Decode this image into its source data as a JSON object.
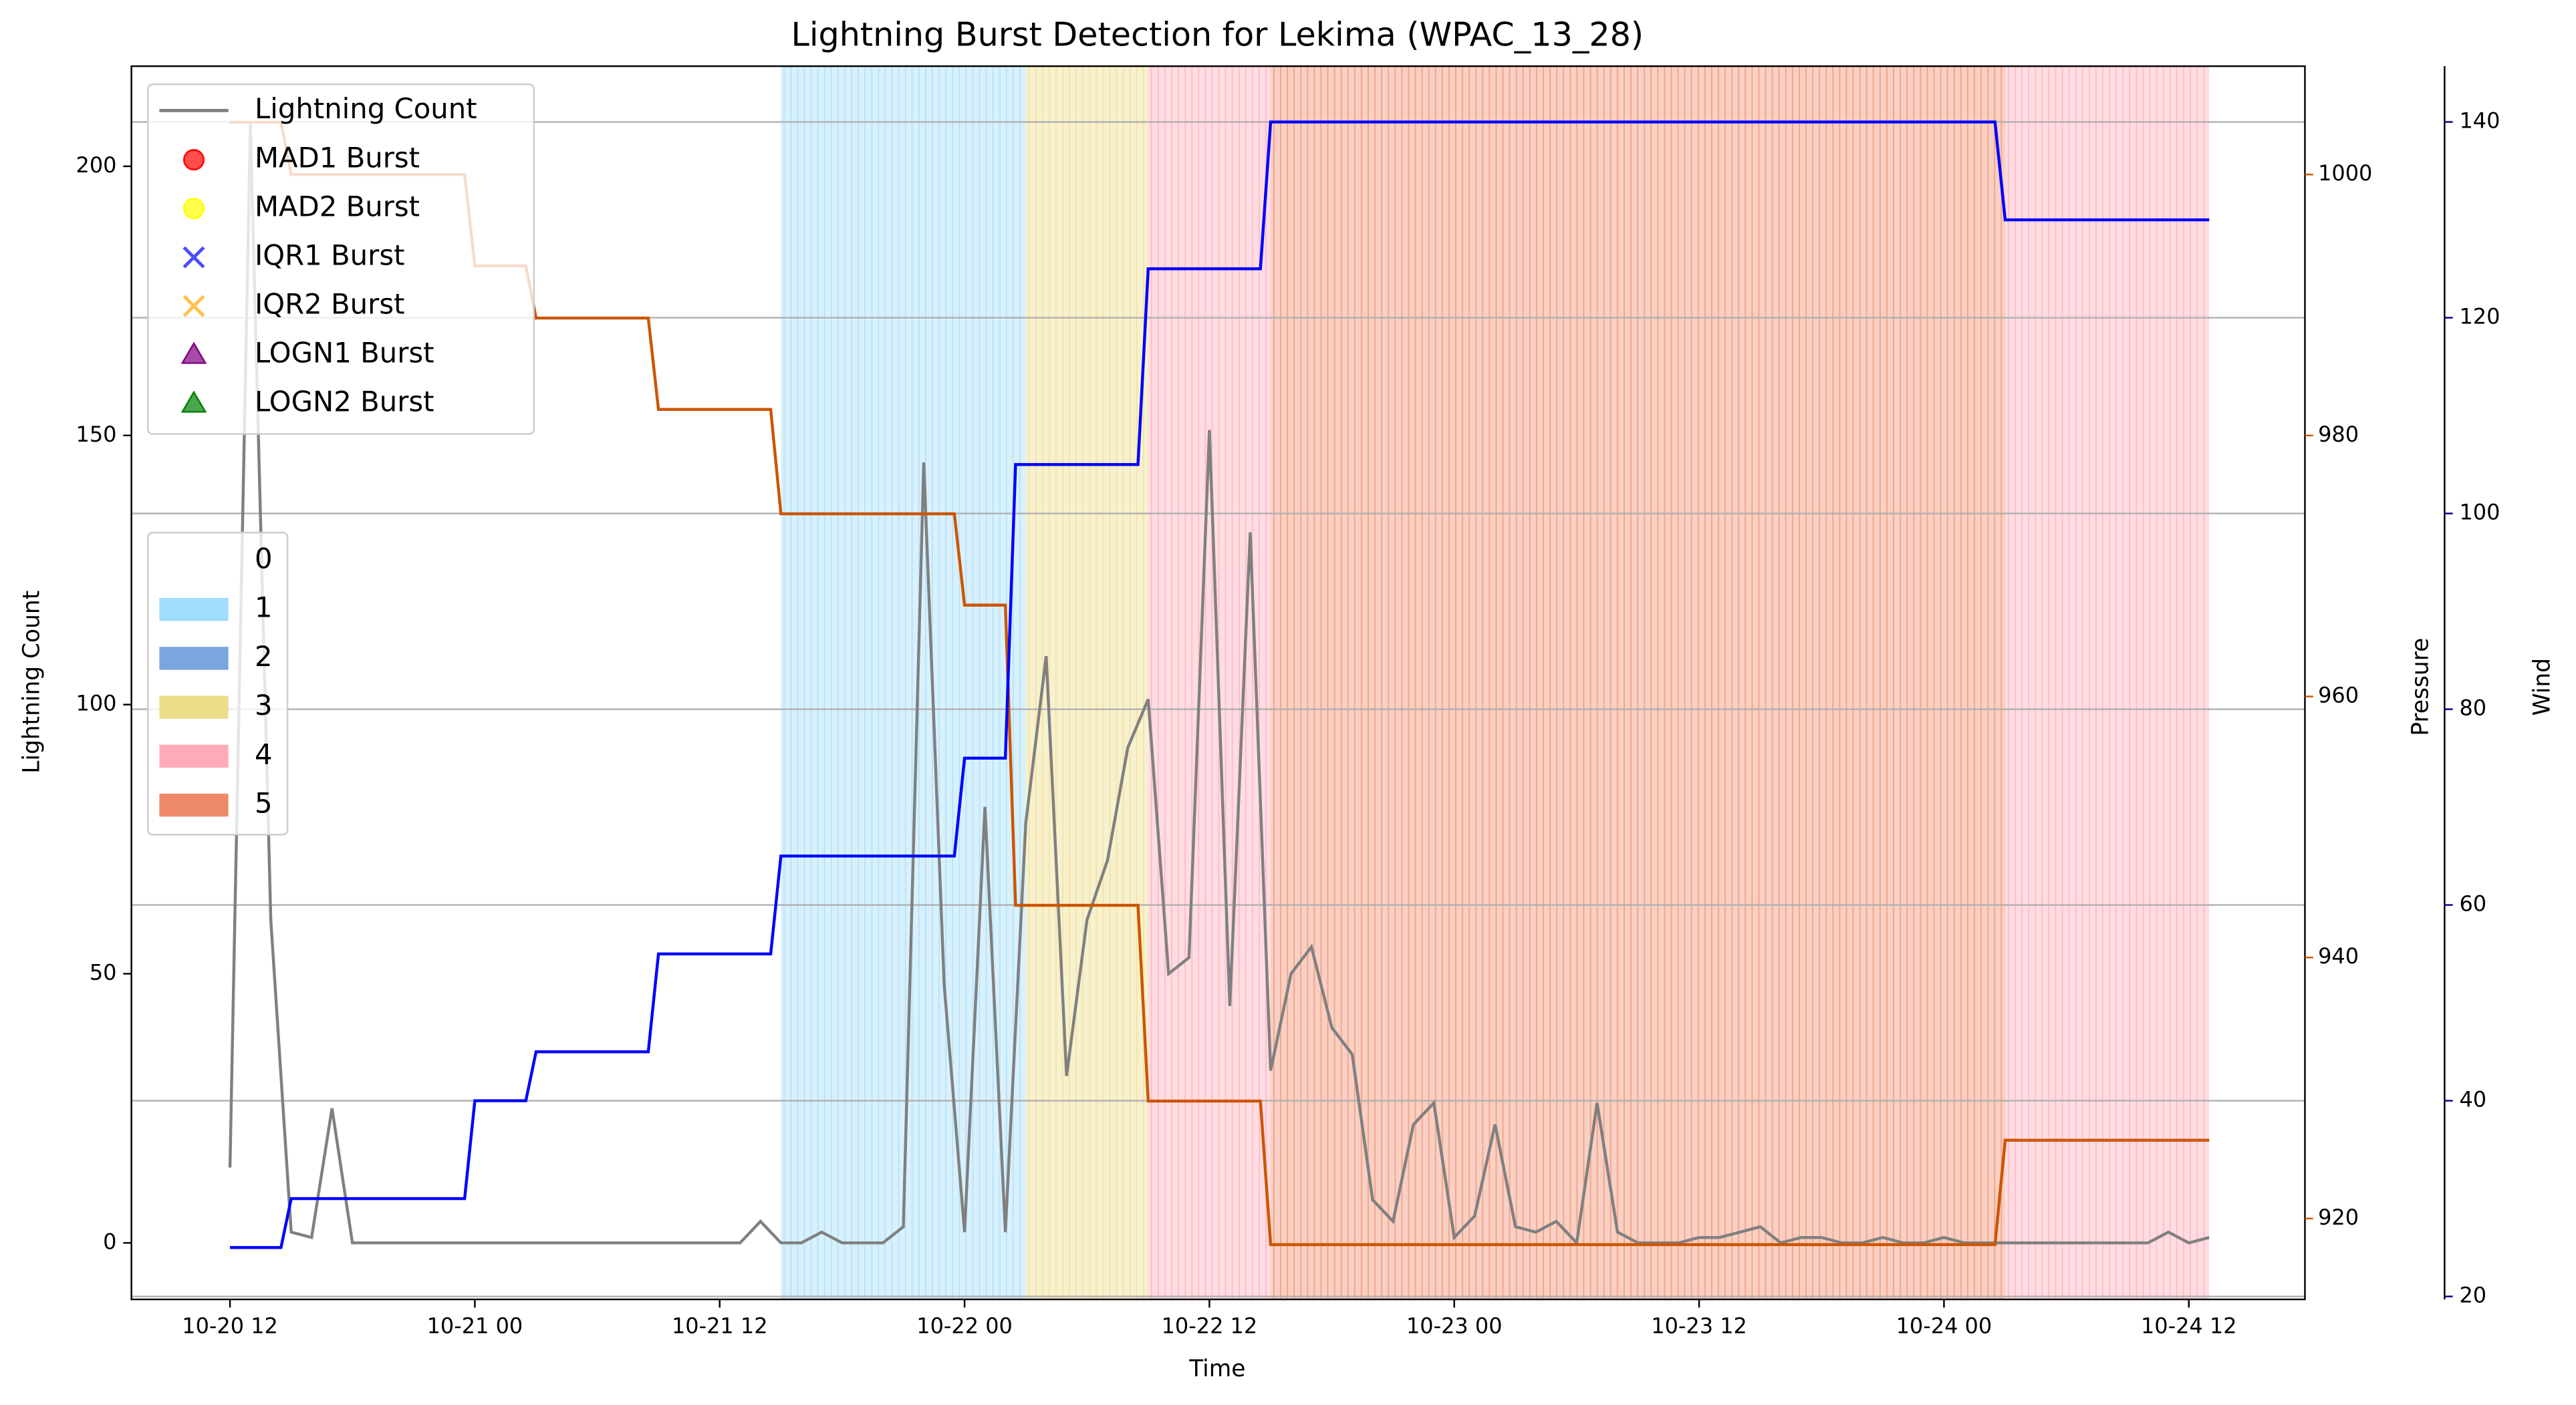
{
  "chart_data": {
    "type": "line",
    "title": "Lightning Burst Detection for Lekima (WPAC_13_28)",
    "xlabel": "Time",
    "ylabel": "Lightning Count",
    "y2label": "Pressure",
    "y3label": "Wind",
    "x": [
      12,
      13,
      14,
      15,
      16,
      17,
      18,
      19,
      20,
      21,
      22,
      23,
      24,
      25,
      26,
      27,
      28,
      29,
      30,
      31,
      32,
      33,
      34,
      35,
      36,
      37,
      38,
      39,
      40,
      41,
      42,
      43,
      44,
      45,
      46,
      47,
      48,
      49,
      50,
      51,
      52,
      53,
      54,
      55,
      56,
      57,
      58,
      59,
      60,
      61,
      62,
      63,
      64,
      65,
      66,
      67,
      68,
      69,
      70,
      71,
      72,
      73,
      74,
      75,
      76,
      77,
      78,
      79,
      80,
      81,
      82,
      83,
      84,
      85,
      86,
      87,
      88,
      89,
      90,
      91,
      92,
      93,
      94,
      95,
      96,
      97,
      98,
      99,
      100,
      101,
      102,
      103,
      104,
      105,
      106,
      107,
      108,
      109
    ],
    "xlim": [
      7.17,
      113.69
    ],
    "xticks": [
      {
        "value": 12,
        "label": "10-20 12"
      },
      {
        "value": 24,
        "label": "10-21 00"
      },
      {
        "value": 36,
        "label": "10-21 12"
      },
      {
        "value": 48,
        "label": "10-22 00"
      },
      {
        "value": 60,
        "label": "10-22 12"
      },
      {
        "value": 72,
        "label": "10-23 00"
      },
      {
        "value": 84,
        "label": "10-23 12"
      },
      {
        "value": 96,
        "label": "10-24 00"
      },
      {
        "value": 108,
        "label": "10-24 12"
      }
    ],
    "ylim": [
      -10.5,
      218.6
    ],
    "yticks": [
      0,
      50,
      100,
      150,
      200
    ],
    "y2lim": [
      913.8,
      1008.3
    ],
    "y2ticks": [
      920,
      940,
      960,
      980,
      1000
    ],
    "y3lim": [
      19.7,
      145.7
    ],
    "y3ticks": [
      20,
      40,
      60,
      80,
      100,
      120,
      140
    ],
    "grid": "y3",
    "ylabel_color": "#808080",
    "y2_color": "#cc5500",
    "y3_color": "#00008b",
    "series": [
      {
        "name": "Lightning Count",
        "color": "#808080",
        "values": [
          14,
          208,
          60,
          2,
          1,
          25,
          0,
          0,
          0,
          0,
          0,
          0,
          0,
          0,
          0,
          0,
          0,
          0,
          0,
          0,
          0,
          0,
          0,
          0,
          0,
          0,
          4,
          0,
          0,
          2,
          0,
          0,
          0,
          3,
          145,
          48,
          2,
          81,
          2,
          78,
          109,
          31,
          60,
          71,
          92,
          101,
          50,
          53,
          151,
          44,
          132,
          32,
          50,
          55,
          40,
          35,
          8,
          4,
          22,
          26,
          1,
          5,
          22,
          3,
          2,
          4,
          0,
          26,
          2,
          0,
          0,
          0,
          1,
          1,
          2,
          3,
          0,
          1,
          1,
          0,
          0,
          1,
          0,
          0,
          1,
          0,
          0,
          0,
          0,
          0,
          0,
          0,
          0,
          0,
          0,
          2,
          0,
          1
        ]
      },
      {
        "axis": "y2",
        "color": "#cc5500",
        "x": [
          12,
          14.5,
          15,
          23.5,
          24,
          26.5,
          27,
          32.5,
          33,
          38.5,
          39,
          47.5,
          48,
          50,
          50.5,
          56.5,
          57,
          62.5,
          63,
          98.5,
          99,
          109
        ],
        "values": [
          1004,
          1004,
          1000,
          1000,
          993,
          993,
          989,
          989,
          982,
          982,
          974,
          974,
          967,
          967,
          944,
          944,
          929,
          929,
          918,
          918,
          926,
          926
        ]
      },
      {
        "axis": "y3",
        "color": "#0000ff",
        "x": [
          12,
          14.5,
          15,
          23.5,
          24,
          26.5,
          27,
          32.5,
          33,
          38.5,
          39,
          47.5,
          48,
          50,
          50.5,
          56.5,
          57,
          62.5,
          63,
          98.5,
          99,
          109
        ],
        "values": [
          25,
          25,
          30,
          30,
          40,
          40,
          45,
          45,
          55,
          55,
          65,
          65,
          75,
          75,
          105,
          105,
          125,
          125,
          140,
          140,
          130,
          130
        ]
      }
    ],
    "bursts": [
      {
        "name": "MAD1 Burst",
        "color": "#ff0000",
        "marker": "o"
      },
      {
        "name": "MAD2 Burst",
        "color": "#ffff00",
        "marker": "o"
      },
      {
        "name": "IQR1 Burst",
        "color": "#0000ff",
        "marker": "x"
      },
      {
        "name": "IQR2 Burst",
        "color": "#ffa500",
        "marker": "x"
      },
      {
        "name": "LOGN1 Burst",
        "color": "#800080",
        "marker": "^"
      },
      {
        "name": "LOGN2 Burst",
        "color": "#008000",
        "marker": "^"
      }
    ],
    "category_legend": [
      {
        "label": "0"
      },
      {
        "label": "1",
        "color": "#a0dcfb"
      },
      {
        "label": "2",
        "color": "#7aa6de"
      },
      {
        "label": "3",
        "color": "#eedd88"
      },
      {
        "label": "4",
        "color": "#ffaab7"
      },
      {
        "label": "5",
        "color": "#ef8a68"
      }
    ],
    "category_spans": [
      {
        "category": "1",
        "start": 39,
        "end": 51
      },
      {
        "category": "3",
        "start": 51,
        "end": 57
      },
      {
        "category": "4",
        "start": 57,
        "end": 63
      },
      {
        "category": "5",
        "start": 63,
        "end": 99
      },
      {
        "category": "4",
        "start": 99,
        "end": 109
      }
    ]
  }
}
